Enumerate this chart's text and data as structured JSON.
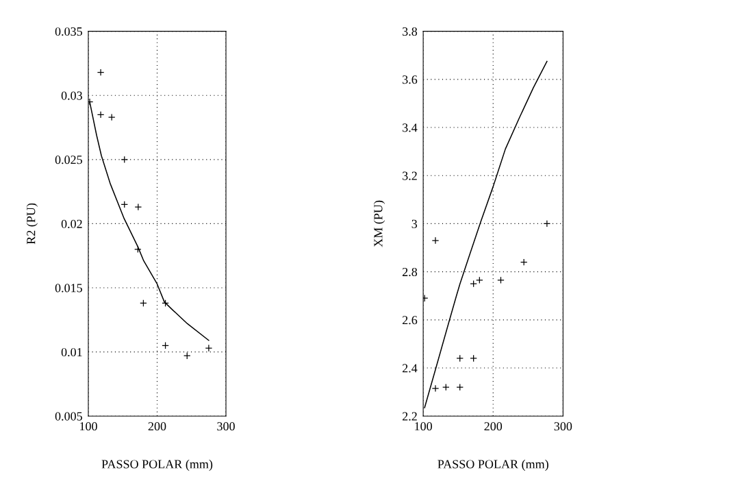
{
  "chart_data": [
    {
      "type": "scatter",
      "xlabel": "PASSO POLAR (mm)",
      "ylabel": "R2 (PU)",
      "xlim": [
        100,
        300
      ],
      "xticks": [
        100,
        200,
        300
      ],
      "ylim": [
        0.005,
        0.035
      ],
      "yticks": [
        0.005,
        0.01,
        0.015,
        0.02,
        0.025,
        0.03,
        0.035
      ],
      "grid": true,
      "series": [
        {
          "marker": "cross",
          "color": "#000000",
          "x": [
            118,
            102,
            118,
            134,
            152.5,
            152.5,
            172.5,
            172,
            180,
            212,
            212,
            243.5,
            275
          ],
          "values": [
            0.0318,
            0.0295,
            0.0285,
            0.0283,
            0.025,
            0.0215,
            0.0213,
            0.018,
            0.0138,
            0.0138,
            0.0105,
            0.0097,
            0.0103
          ]
        },
        {
          "type": "line",
          "marker": "none",
          "line_style": "solid",
          "color": "#000000",
          "x": [
            102,
            112,
            119,
            132,
            152,
            172,
            180.5,
            200,
            210.5,
            222,
            244,
            275
          ],
          "values": [
            0.0295,
            0.0269,
            0.0253,
            0.0231,
            0.0204,
            0.0182,
            0.0171,
            0.0153,
            0.0139,
            0.0133,
            0.0122,
            0.0109
          ]
        }
      ]
    },
    {
      "type": "scatter",
      "xlabel": "PASSO POLAR (mm)",
      "ylabel": "XM (PU)",
      "xlim": [
        100,
        300
      ],
      "xticks": [
        100,
        200,
        300
      ],
      "ylim": [
        2.2,
        3.8
      ],
      "yticks": [
        2.2,
        2.4,
        2.6,
        2.8,
        3,
        3.2,
        3.4,
        3.6,
        3.8
      ],
      "grid": true,
      "series": [
        {
          "marker": "cross",
          "color": "#000000",
          "x": [
            102,
            117.5,
            117.5,
            132.5,
            152.5,
            152.5,
            172,
            172,
            180.5,
            211,
            244,
            277
          ],
          "values": [
            2.69,
            2.93,
            2.315,
            2.32,
            2.32,
            2.44,
            2.44,
            2.75,
            2.765,
            2.765,
            2.84,
            3.0
          ]
        },
        {
          "type": "line",
          "marker": "none",
          "line_style": "solid",
          "color": "#000000",
          "x": [
            102,
            117.5,
            136,
            147.5,
            152.5,
            167.5,
            182.5,
            200,
            217.5,
            237.5,
            257.5,
            277
          ],
          "values": [
            2.235,
            2.393,
            2.583,
            2.7,
            2.749,
            2.88,
            3.01,
            3.154,
            3.31,
            3.44,
            3.565,
            3.675
          ]
        }
      ]
    }
  ]
}
